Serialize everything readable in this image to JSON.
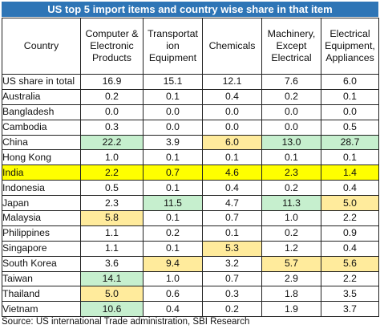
{
  "title": "US top 5 import items and country wise share in that item",
  "source": "Source: US international Trade administration, SBI Research",
  "chart_data": {
    "type": "table",
    "row_header_label": "Country",
    "columns": [
      "Computer & Electronic Products",
      "Transportation Equipment",
      "Chemicals",
      "Machinery, Except Electrical",
      "Electrical Equipment, Appliances"
    ],
    "column_header_lines": [
      [
        "Computer &",
        "Electronic",
        "Products"
      ],
      [
        "Transportat",
        "ion",
        "Equipment"
      ],
      [
        "Chemicals"
      ],
      [
        "Machinery,",
        "Except",
        "Electrical"
      ],
      [
        "Electrical",
        "Equipment,",
        "Appliances"
      ]
    ],
    "rows": [
      {
        "country": "US share in total",
        "values": [
          "16.9",
          "15.1",
          "12.1",
          "7.6",
          "6.0"
        ],
        "highlight": [
          "",
          "",
          "",
          "",
          ""
        ]
      },
      {
        "country": "Australia",
        "values": [
          "0.2",
          "0.1",
          "0.4",
          "0.2",
          "0.1"
        ],
        "highlight": [
          "",
          "",
          "",
          "",
          ""
        ]
      },
      {
        "country": "Bangladesh",
        "values": [
          "0.0",
          "0.0",
          "0.0",
          "0.0",
          "0.0"
        ],
        "highlight": [
          "",
          "",
          "",
          "",
          ""
        ]
      },
      {
        "country": "Cambodia",
        "values": [
          "0.3",
          "0.0",
          "0.0",
          "0.0",
          "0.5"
        ],
        "highlight": [
          "",
          "",
          "",
          "",
          ""
        ]
      },
      {
        "country": "China",
        "values": [
          "22.2",
          "3.9",
          "6.0",
          "13.0",
          "28.7"
        ],
        "highlight": [
          "green",
          "",
          "orange",
          "green",
          "green"
        ]
      },
      {
        "country": "Hong Kong",
        "values": [
          "1.0",
          "0.1",
          "0.1",
          "0.1",
          "0.1"
        ],
        "highlight": [
          "",
          "",
          "",
          "",
          ""
        ]
      },
      {
        "country": "India",
        "values": [
          "2.2",
          "0.7",
          "4.6",
          "2.3",
          "1.4"
        ],
        "highlight": [
          "",
          "",
          "",
          "",
          ""
        ],
        "row_highlight": true
      },
      {
        "country": "Indonesia",
        "values": [
          "0.5",
          "0.1",
          "0.4",
          "0.2",
          "0.4"
        ],
        "highlight": [
          "",
          "",
          "",
          "",
          ""
        ]
      },
      {
        "country": "Japan",
        "values": [
          "2.3",
          "11.5",
          "4.7",
          "11.3",
          "5.0"
        ],
        "highlight": [
          "",
          "green",
          "",
          "green",
          "orange"
        ]
      },
      {
        "country": "Malaysia",
        "values": [
          "5.8",
          "0.1",
          "0.7",
          "1.0",
          "2.2"
        ],
        "highlight": [
          "orange",
          "",
          "",
          "",
          ""
        ]
      },
      {
        "country": "Philippines",
        "values": [
          "1.1",
          "0.2",
          "0.1",
          "0.2",
          "0.9"
        ],
        "highlight": [
          "",
          "",
          "",
          "",
          ""
        ]
      },
      {
        "country": "Singapore",
        "values": [
          "1.1",
          "0.1",
          "5.3",
          "1.2",
          "0.4"
        ],
        "highlight": [
          "",
          "",
          "orange",
          "",
          ""
        ]
      },
      {
        "country": "South Korea",
        "values": [
          "3.6",
          "9.4",
          "3.2",
          "5.7",
          "5.6"
        ],
        "highlight": [
          "",
          "orange",
          "",
          "orange",
          "orange"
        ]
      },
      {
        "country": "Taiwan",
        "values": [
          "14.1",
          "1.0",
          "0.7",
          "2.9",
          "2.2"
        ],
        "highlight": [
          "green",
          "",
          "",
          "",
          ""
        ]
      },
      {
        "country": "Thailand",
        "values": [
          "5.0",
          "0.6",
          "0.3",
          "1.8",
          "3.5"
        ],
        "highlight": [
          "orange",
          "",
          "",
          "",
          ""
        ]
      },
      {
        "country": "Vietnam",
        "values": [
          "10.6",
          "0.4",
          "0.2",
          "1.9",
          "3.7"
        ],
        "highlight": [
          "green",
          "",
          "",
          "",
          ""
        ]
      }
    ]
  },
  "colors": {
    "title_bar": "#2e75b6",
    "highlight_green": "#c6efce",
    "highlight_orange": "#ffeb9c",
    "row_highlight": "#ffff00"
  }
}
